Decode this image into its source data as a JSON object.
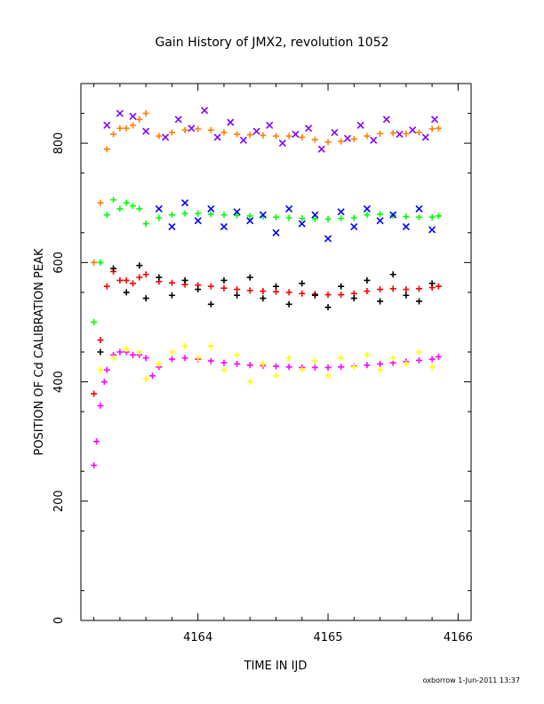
{
  "chart_data": {
    "type": "scatter",
    "title": "Gain History of JMX2, revolution 1052",
    "xlabel": "TIME IN IJD",
    "ylabel": "POSITION OF Cd CALIBRATION PEAK",
    "xlim": [
      4163.1,
      4166.1
    ],
    "ylim": [
      0,
      900
    ],
    "xticks": [
      4164,
      4165,
      4166
    ],
    "yticks": [
      0,
      200,
      400,
      600,
      800
    ],
    "xtick_labels": [
      "4164",
      "4165",
      "4166"
    ],
    "ytick_labels": [
      "0",
      "200",
      "400",
      "600",
      "800"
    ],
    "grid": false,
    "legend": "none",
    "series": [
      {
        "color": "#ff7f00",
        "marker": "plus",
        "x": [
          4163.2,
          4163.25,
          4163.3,
          4163.35,
          4163.4,
          4163.45,
          4163.5,
          4163.55,
          4163.6,
          4163.7,
          4163.8,
          4163.9,
          4164.0,
          4164.1,
          4164.2,
          4164.3,
          4164.4,
          4164.5,
          4164.6,
          4164.7,
          4164.8,
          4164.9,
          4165.0,
          4165.1,
          4165.2,
          4165.3,
          4165.4,
          4165.5,
          4165.6,
          4165.7,
          4165.8,
          4165.85
        ],
        "y": [
          600,
          700,
          790,
          815,
          825,
          825,
          830,
          840,
          850,
          812,
          818,
          822,
          824,
          822,
          818,
          815,
          814,
          813,
          812,
          812,
          810,
          806,
          802,
          803,
          807,
          812,
          816,
          817,
          816,
          818,
          824,
          825
        ]
      },
      {
        "color": "#8000ff",
        "marker": "x",
        "x": [
          4163.3,
          4163.4,
          4163.5,
          4163.6,
          4163.75,
          4163.85,
          4163.95,
          4164.05,
          4164.15,
          4164.25,
          4164.35,
          4164.45,
          4164.55,
          4164.65,
          4164.75,
          4164.85,
          4164.95,
          4165.05,
          4165.15,
          4165.25,
          4165.35,
          4165.45,
          4165.55,
          4165.65,
          4165.75,
          4165.82
        ],
        "y": [
          830,
          850,
          845,
          820,
          810,
          840,
          825,
          855,
          810,
          835,
          805,
          820,
          830,
          800,
          815,
          825,
          790,
          818,
          808,
          830,
          805,
          840,
          815,
          822,
          810,
          840
        ]
      },
      {
        "color": "#00ff00",
        "marker": "plus",
        "x": [
          4163.2,
          4163.25,
          4163.3,
          4163.35,
          4163.4,
          4163.45,
          4163.5,
          4163.55,
          4163.6,
          4163.7,
          4163.8,
          4163.9,
          4164.0,
          4164.1,
          4164.2,
          4164.3,
          4164.4,
          4164.5,
          4164.6,
          4164.7,
          4164.8,
          4164.9,
          4165.0,
          4165.1,
          4165.2,
          4165.3,
          4165.4,
          4165.5,
          4165.6,
          4165.7,
          4165.8,
          4165.85
        ],
        "y": [
          500,
          600,
          680,
          705,
          690,
          700,
          695,
          690,
          665,
          675,
          680,
          682,
          682,
          681,
          680,
          679,
          678,
          677,
          676,
          675,
          674,
          673,
          673,
          674,
          675,
          680,
          681,
          679,
          677,
          676,
          676,
          678
        ]
      },
      {
        "color": "#0000ff",
        "marker": "x",
        "x": [
          4163.7,
          4163.8,
          4163.9,
          4164.0,
          4164.1,
          4164.2,
          4164.3,
          4164.4,
          4164.5,
          4164.6,
          4164.7,
          4164.8,
          4164.9,
          4165.0,
          4165.1,
          4165.2,
          4165.3,
          4165.4,
          4165.5,
          4165.6,
          4165.7,
          4165.8
        ],
        "y": [
          690,
          660,
          700,
          670,
          690,
          660,
          685,
          670,
          680,
          650,
          690,
          665,
          680,
          640,
          685,
          660,
          690,
          670,
          680,
          660,
          690,
          655
        ]
      },
      {
        "color": "#ff0000",
        "marker": "plus",
        "x": [
          4163.2,
          4163.25,
          4163.3,
          4163.35,
          4163.4,
          4163.45,
          4163.5,
          4163.55,
          4163.6,
          4163.7,
          4163.8,
          4163.9,
          4164.0,
          4164.1,
          4164.2,
          4164.3,
          4164.4,
          4164.5,
          4164.6,
          4164.7,
          4164.8,
          4164.9,
          4165.0,
          4165.1,
          4165.2,
          4165.3,
          4165.4,
          4165.5,
          4165.6,
          4165.7,
          4165.8,
          4165.85
        ],
        "y": [
          380,
          470,
          560,
          585,
          570,
          570,
          565,
          575,
          580,
          568,
          566,
          563,
          562,
          560,
          557,
          555,
          553,
          552,
          551,
          550,
          548,
          547,
          546,
          546,
          548,
          552,
          555,
          556,
          555,
          556,
          558,
          560
        ]
      },
      {
        "color": "#000000",
        "marker": "plus",
        "x": [
          4163.25,
          4163.35,
          4163.45,
          4163.55,
          4163.6,
          4163.7,
          4163.8,
          4163.9,
          4164.0,
          4164.1,
          4164.2,
          4164.3,
          4164.4,
          4164.5,
          4164.6,
          4164.7,
          4164.8,
          4164.9,
          4165.0,
          4165.1,
          4165.2,
          4165.3,
          4165.4,
          4165.5,
          4165.6,
          4165.7,
          4165.8
        ],
        "y": [
          450,
          590,
          550,
          595,
          540,
          575,
          545,
          570,
          555,
          530,
          570,
          545,
          575,
          540,
          560,
          530,
          565,
          545,
          525,
          560,
          540,
          570,
          535,
          580,
          545,
          535,
          565
        ]
      },
      {
        "color": "#ff00ff",
        "marker": "plus",
        "x": [
          4163.2,
          4163.22,
          4163.25,
          4163.28,
          4163.3,
          4163.35,
          4163.4,
          4163.45,
          4163.5,
          4163.55,
          4163.6,
          4163.65,
          4163.7,
          4163.8,
          4163.9,
          4164.0,
          4164.1,
          4164.2,
          4164.3,
          4164.4,
          4164.5,
          4164.6,
          4164.7,
          4164.8,
          4164.9,
          4165.0,
          4165.1,
          4165.2,
          4165.3,
          4165.4,
          4165.5,
          4165.6,
          4165.7,
          4165.8,
          4165.85
        ],
        "y": [
          260,
          300,
          360,
          400,
          420,
          445,
          450,
          450,
          445,
          445,
          440,
          410,
          425,
          438,
          440,
          438,
          435,
          432,
          430,
          428,
          427,
          426,
          425,
          424,
          424,
          424,
          425,
          426,
          428,
          430,
          432,
          434,
          436,
          438,
          442
        ]
      },
      {
        "color": "#ffff00",
        "marker": "plus",
        "x": [
          4163.25,
          4163.35,
          4163.45,
          4163.55,
          4163.6,
          4163.7,
          4163.8,
          4163.9,
          4164.0,
          4164.1,
          4164.2,
          4164.3,
          4164.4,
          4164.5,
          4164.6,
          4164.7,
          4164.8,
          4164.9,
          4165.0,
          4165.1,
          4165.2,
          4165.3,
          4165.4,
          4165.5,
          4165.6,
          4165.7,
          4165.8
        ],
        "y": [
          420,
          440,
          455,
          450,
          405,
          430,
          450,
          460,
          440,
          460,
          420,
          445,
          400,
          430,
          410,
          440,
          420,
          435,
          410,
          440,
          425,
          445,
          420,
          440,
          430,
          450,
          425
        ]
      }
    ]
  },
  "footer": "oxborrow  1-Jun-2011 13:37"
}
